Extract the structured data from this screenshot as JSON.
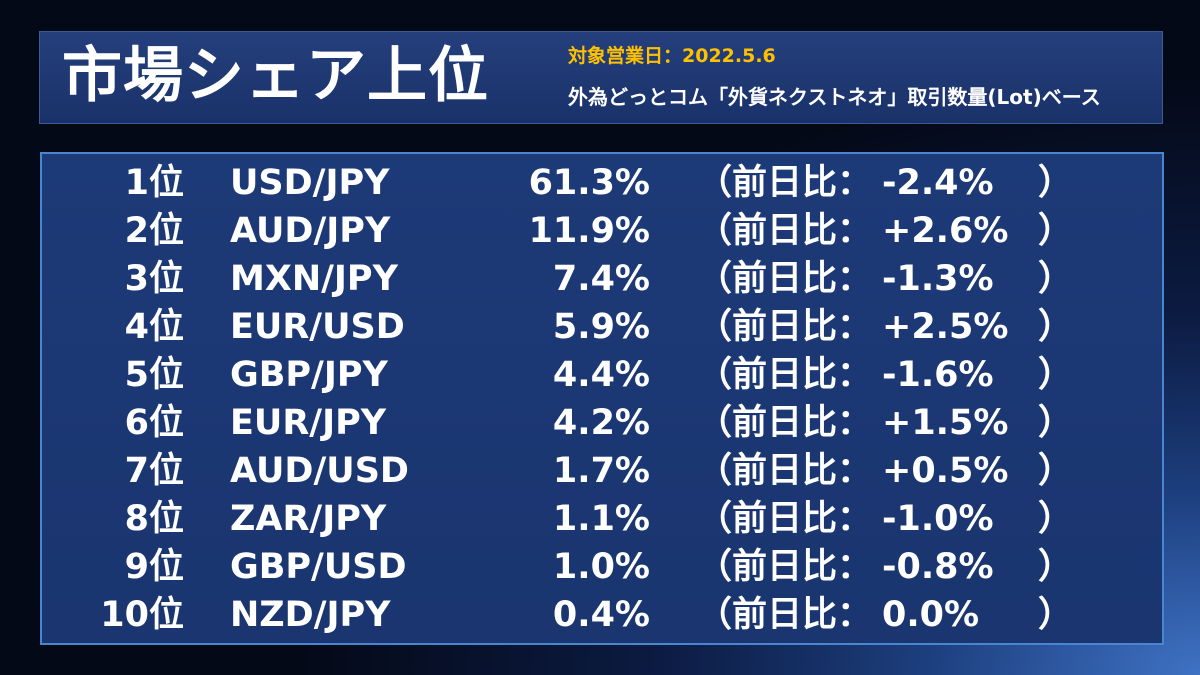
{
  "header": {
    "title": "市場シェア上位",
    "date_label": "対象営業日：2022.5.6",
    "basis_label": "外為どっとコム「外貨ネクストネオ」取引数量(Lot)ベース"
  },
  "table": {
    "change_prefix": "（前日比：",
    "change_suffix": "）",
    "rows": [
      {
        "rank": "1位",
        "pair": "USD/JPY",
        "share": "61.3%",
        "change": "-2.4%"
      },
      {
        "rank": "2位",
        "pair": "AUD/JPY",
        "share": "11.9%",
        "change": "+2.6%"
      },
      {
        "rank": "3位",
        "pair": "MXN/JPY",
        "share": "7.4%",
        "change": "-1.3%"
      },
      {
        "rank": "4位",
        "pair": "EUR/USD",
        "share": "5.9%",
        "change": "+2.5%"
      },
      {
        "rank": "5位",
        "pair": "GBP/JPY",
        "share": "4.4%",
        "change": "-1.6%"
      },
      {
        "rank": "6位",
        "pair": "EUR/JPY",
        "share": "4.2%",
        "change": "+1.5%"
      },
      {
        "rank": "7位",
        "pair": "AUD/USD",
        "share": "1.7%",
        "change": "+0.5%"
      },
      {
        "rank": "8位",
        "pair": "ZAR/JPY",
        "share": "1.1%",
        "change": "-1.0%"
      },
      {
        "rank": "9位",
        "pair": "GBP/USD",
        "share": "1.0%",
        "change": "-0.8%"
      },
      {
        "rank": "10位",
        "pair": "NZD/JPY",
        "share": "0.4%",
        "change": "0.0%"
      }
    ]
  }
}
